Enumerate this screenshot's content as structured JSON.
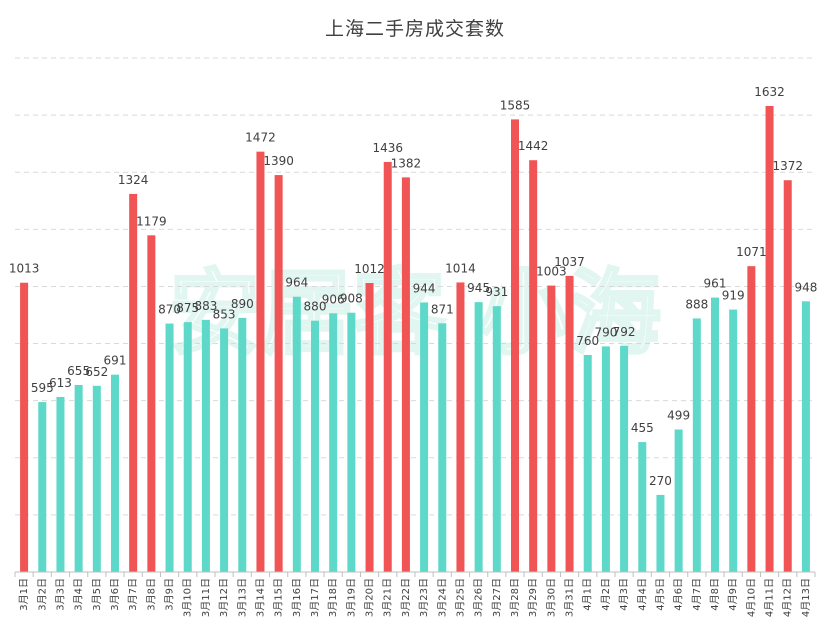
{
  "chart_data": {
    "type": "bar",
    "title": "上海二手房成交套数",
    "watermark": "安居客 小海",
    "colors": {
      "weekend": "#F05454",
      "weekday": "#5ED8C8",
      "grid": "#d9d9d9",
      "axis": "#bfbfbf"
    },
    "ylim": [
      0,
      1800
    ],
    "grid_step": 200,
    "categories": [
      "3月1日",
      "3月2日",
      "3月3日",
      "3月4日",
      "3月5日",
      "3月6日",
      "3月7日",
      "3月8日",
      "3月9日",
      "3月10日",
      "3月11日",
      "3月12日",
      "3月13日",
      "3月14日",
      "3月15日",
      "3月16日",
      "3月17日",
      "3月18日",
      "3月19日",
      "3月20日",
      "3月21日",
      "3月22日",
      "3月23日",
      "3月24日",
      "3月25日",
      "3月26日",
      "3月27日",
      "3月28日",
      "3月29日",
      "3月30日",
      "3月31日",
      "4月1日",
      "4月2日",
      "4月3日",
      "4月4日",
      "4月5日",
      "4月6日",
      "4月7日",
      "4月8日",
      "4月9日",
      "4月10日",
      "4月11日",
      "4月12日",
      "4月13日"
    ],
    "values": [
      1013,
      595,
      613,
      655,
      652,
      691,
      1324,
      1179,
      870,
      875,
      883,
      853,
      890,
      1472,
      1390,
      964,
      880,
      906,
      908,
      1012,
      1436,
      1382,
      944,
      871,
      1014,
      945,
      931,
      1585,
      1442,
      1003,
      1037,
      760,
      790,
      792,
      455,
      270,
      499,
      888,
      961,
      919,
      1071,
      1632,
      1372,
      948
    ],
    "highlight": [
      true,
      false,
      false,
      false,
      false,
      false,
      true,
      true,
      false,
      false,
      false,
      false,
      false,
      true,
      true,
      false,
      false,
      false,
      false,
      true,
      true,
      true,
      false,
      false,
      true,
      false,
      false,
      true,
      true,
      true,
      true,
      false,
      false,
      false,
      false,
      false,
      false,
      false,
      false,
      false,
      true,
      true,
      true,
      false
    ]
  }
}
